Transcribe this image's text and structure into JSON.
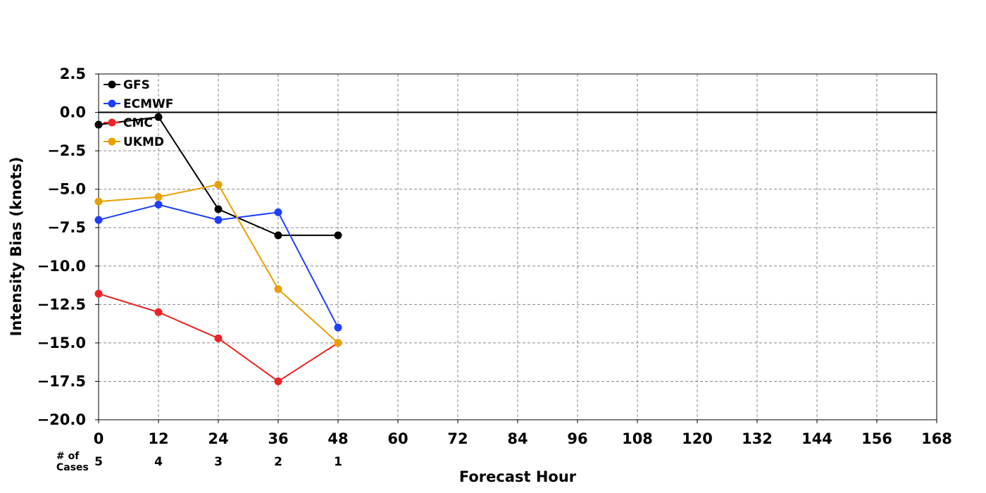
{
  "chart_data": {
    "type": "line",
    "xlabel": "Forecast Hour",
    "ylabel": "Intensity Bias (knots)",
    "xlim": [
      0,
      168
    ],
    "ylim": [
      -20.0,
      2.5
    ],
    "x_ticks": [
      0,
      12,
      24,
      36,
      48,
      60,
      72,
      84,
      96,
      108,
      120,
      132,
      144,
      156,
      168
    ],
    "y_ticks": [
      2.5,
      0.0,
      -2.5,
      -5.0,
      -7.5,
      -10.0,
      -12.5,
      -15.0,
      -17.5,
      -20.0
    ],
    "y_tick_labels": [
      "2.5",
      "0.0",
      "−2.5",
      "−5.0",
      "−7.5",
      "−10.0",
      "−12.5",
      "−15.0",
      "−17.5",
      "−20.0"
    ],
    "grid": true,
    "zero_line": true,
    "legend_position": "top-left",
    "series": [
      {
        "name": "GFS",
        "color": "#000000",
        "x": [
          0,
          12,
          24,
          36,
          48
        ],
        "values": [
          -0.8,
          -0.3,
          -6.3,
          -8.0,
          -8.0
        ]
      },
      {
        "name": "ECMWF",
        "color": "#1f3fff",
        "x": [
          0,
          12,
          24,
          36,
          48
        ],
        "values": [
          -7.0,
          -6.0,
          -7.0,
          -6.5,
          -14.0
        ]
      },
      {
        "name": "CMC",
        "color": "#ee2222",
        "x": [
          0,
          12,
          24,
          36,
          48
        ],
        "values": [
          -11.8,
          -13.0,
          -14.7,
          -17.5,
          -15.0
        ]
      },
      {
        "name": "UKMD",
        "color": "#e8a000",
        "x": [
          0,
          12,
          24,
          36,
          48
        ],
        "values": [
          -5.8,
          -5.5,
          -4.7,
          -11.5,
          -15.0
        ]
      }
    ],
    "cases": {
      "label_line1": "# of",
      "label_line2": "Cases",
      "x": [
        0,
        12,
        24,
        36,
        48
      ],
      "counts": [
        "5",
        "4",
        "3",
        "2",
        "1"
      ]
    }
  }
}
